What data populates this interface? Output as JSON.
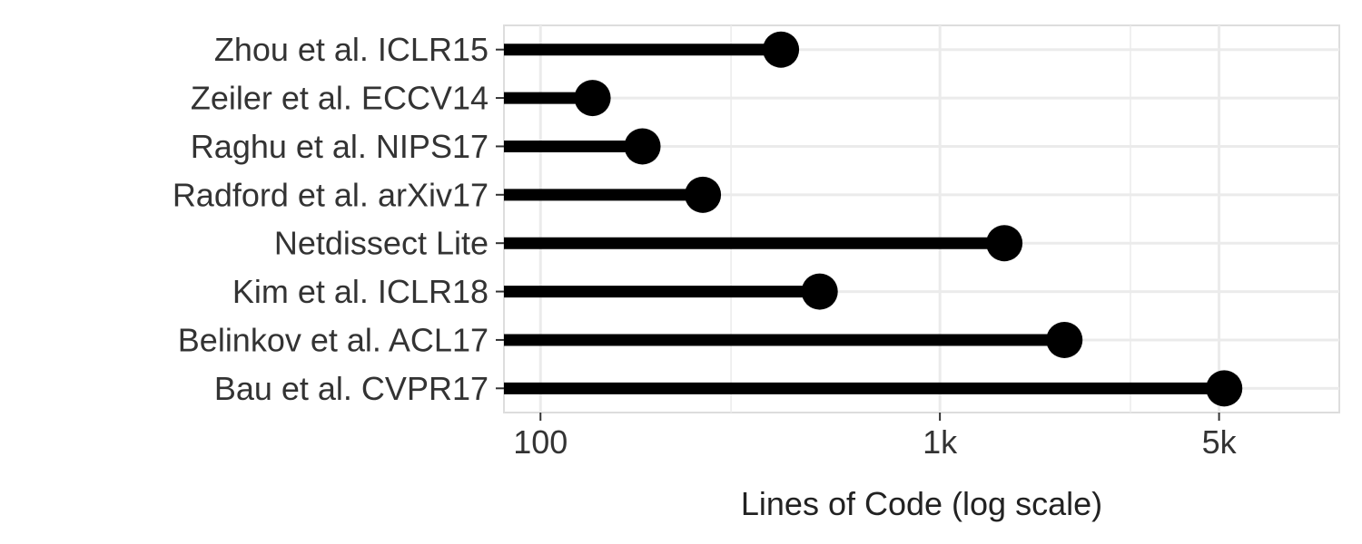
{
  "chart_data": {
    "type": "lollipop",
    "categories": [
      "Zhou et al. ICLR15",
      "Zeiler et al. ECCV14",
      "Raghu et al. NIPS17",
      "Radford et al.  arXiv17",
      "Netdissect Lite",
      "Kim et al. ICLR18",
      "Belinkov et al. ACL17",
      "Bau et al. CVPR17"
    ],
    "values": [
      400,
      135,
      180,
      255,
      1450,
      500,
      2050,
      5150
    ],
    "xlabel": "Lines of Code (log scale)",
    "x_scale": "log",
    "xlim": [
      81,
      10000
    ],
    "x_ticks": [
      {
        "value": 100,
        "label": "100"
      },
      {
        "value": 1000,
        "label": "1k"
      },
      {
        "value": 5000,
        "label": "5k"
      }
    ],
    "x_minor_grid": [
      300,
      3000
    ],
    "grid": true,
    "colors": {
      "mark": "#000000",
      "grid": "#ebebeb",
      "panel_border": "#dddddd"
    }
  }
}
